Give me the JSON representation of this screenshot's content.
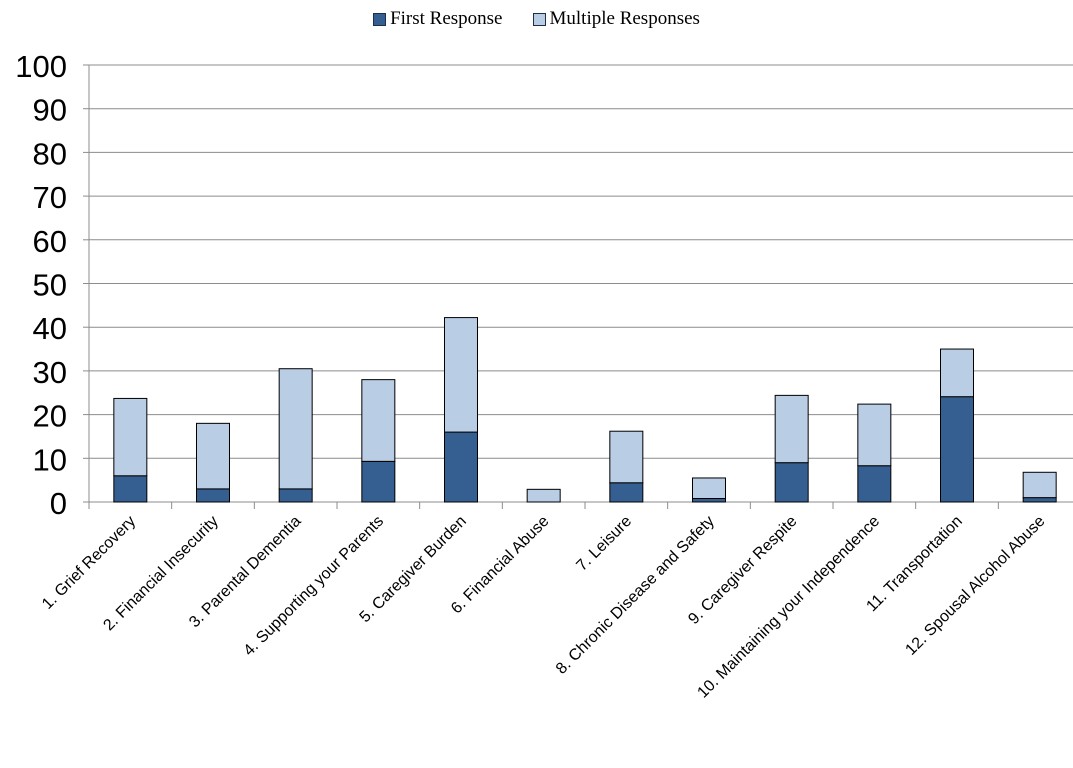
{
  "chart_data": {
    "type": "bar",
    "stacked": true,
    "categories": [
      "1. Grief Recovery",
      "2. Financial Insecurity",
      "3. Parental Dementia",
      "4. Supporting your Parents",
      "5. Caregiver Burden",
      "6. Financial Abuse",
      "7. Leisure",
      "8. Chronic Disease and Safety",
      "9. Caregiver Respite",
      "10. Maintaining your Independence",
      "11. Transportation",
      "12. Spousal Alcohol Abuse"
    ],
    "series": [
      {
        "name": "First Response",
        "color": "#365f91",
        "values": [
          6,
          3,
          3,
          9.3,
          16,
          0,
          4.4,
          0.8,
          9,
          8.3,
          24.1,
          1
        ]
      },
      {
        "name": "Multiple Responses",
        "color": "#b9cde5",
        "values": [
          17.7,
          15,
          27.5,
          18.7,
          26.2,
          2.9,
          11.8,
          4.7,
          15.4,
          14.1,
          10.9,
          5.8
        ]
      }
    ],
    "ylim": [
      0,
      100
    ],
    "yticks": [
      "0",
      "10",
      "20",
      "30",
      "40",
      "50",
      "60",
      "70",
      "80",
      "90",
      "100"
    ],
    "grid": true,
    "legend_position": "top-center",
    "title": "",
    "xlabel": "",
    "ylabel": ""
  }
}
